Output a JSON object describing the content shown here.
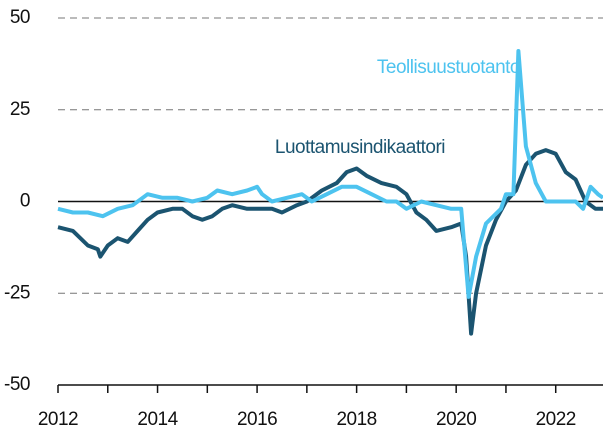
{
  "chart_data": {
    "type": "line",
    "xlim": [
      2012,
      2022.95
    ],
    "xticks": [
      2012,
      2014,
      2016,
      2018,
      2020,
      2022
    ],
    "xminor_ticks": [
      2013,
      2015,
      2017,
      2019,
      2021
    ],
    "ylim": [
      -50,
      50
    ],
    "yticks": [
      -50,
      -25,
      0,
      25,
      50
    ],
    "grid": true,
    "series": [
      {
        "name": "Luottamusindikaattori",
        "color": "#1b5470",
        "x": [
          2012.0,
          2012.3,
          2012.6,
          2012.8,
          2012.85,
          2013.0,
          2013.2,
          2013.4,
          2013.6,
          2013.8,
          2014.0,
          2014.3,
          2014.5,
          2014.7,
          2014.9,
          2015.1,
          2015.3,
          2015.5,
          2015.8,
          2016.0,
          2016.3,
          2016.5,
          2016.8,
          2017.0,
          2017.3,
          2017.6,
          2017.8,
          2018.0,
          2018.2,
          2018.5,
          2018.8,
          2019.0,
          2019.2,
          2019.4,
          2019.6,
          2019.9,
          2020.1,
          2020.2,
          2020.3,
          2020.4,
          2020.6,
          2020.8,
          2021.0,
          2021.2,
          2021.4,
          2021.6,
          2021.8,
          2022.0,
          2022.2,
          2022.4,
          2022.6,
          2022.8,
          2022.95
        ],
        "values": [
          -7,
          -8,
          -12,
          -13,
          -15,
          -12,
          -10,
          -11,
          -8,
          -5,
          -3,
          -2,
          -2,
          -4,
          -5,
          -4,
          -2,
          -1,
          -2,
          -2,
          -2,
          -3,
          -1,
          0,
          3,
          5,
          8,
          9,
          7,
          5,
          4,
          2,
          -3,
          -5,
          -8,
          -7,
          -6,
          -15,
          -36,
          -25,
          -12,
          -5,
          0,
          3,
          10,
          13,
          14,
          13,
          8,
          6,
          0,
          -2,
          -2
        ]
      },
      {
        "name": "Teollisuustuotanto",
        "color": "#4dc3ef",
        "x": [
          2012.0,
          2012.3,
          2012.6,
          2012.9,
          2013.2,
          2013.5,
          2013.8,
          2014.1,
          2014.4,
          2014.7,
          2015.0,
          2015.2,
          2015.5,
          2015.8,
          2016.0,
          2016.1,
          2016.3,
          2016.6,
          2016.9,
          2017.1,
          2017.4,
          2017.7,
          2018.0,
          2018.3,
          2018.6,
          2018.8,
          2019.0,
          2019.3,
          2019.6,
          2019.9,
          2020.1,
          2020.25,
          2020.4,
          2020.6,
          2020.9,
          2021.0,
          2021.15,
          2021.25,
          2021.4,
          2021.6,
          2021.8,
          2022.0,
          2022.2,
          2022.4,
          2022.55,
          2022.7,
          2022.85,
          2022.95
        ],
        "values": [
          -2,
          -3,
          -3,
          -4,
          -2,
          -1,
          2,
          1,
          1,
          0,
          1,
          3,
          2,
          3,
          4,
          2,
          0,
          1,
          2,
          0,
          2,
          4,
          4,
          2,
          0,
          0,
          -2,
          0,
          -1,
          -2,
          -2,
          -26,
          -15,
          -6,
          -2,
          2,
          2,
          41,
          15,
          5,
          0,
          0,
          0,
          0,
          -2,
          4,
          2,
          1
        ]
      }
    ]
  }
}
